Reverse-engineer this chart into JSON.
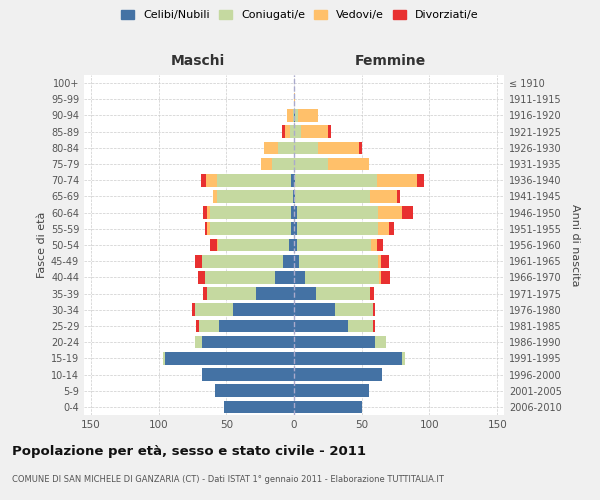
{
  "age_groups": [
    "0-4",
    "5-9",
    "10-14",
    "15-19",
    "20-24",
    "25-29",
    "30-34",
    "35-39",
    "40-44",
    "45-49",
    "50-54",
    "55-59",
    "60-64",
    "65-69",
    "70-74",
    "75-79",
    "80-84",
    "85-89",
    "90-94",
    "95-99",
    "100+"
  ],
  "birth_years": [
    "2006-2010",
    "2001-2005",
    "1996-2000",
    "1991-1995",
    "1986-1990",
    "1981-1985",
    "1976-1980",
    "1971-1975",
    "1966-1970",
    "1961-1965",
    "1956-1960",
    "1951-1955",
    "1946-1950",
    "1941-1945",
    "1936-1940",
    "1931-1935",
    "1926-1930",
    "1921-1925",
    "1916-1920",
    "1911-1915",
    "≤ 1910"
  ],
  "male": {
    "celibi": [
      52,
      58,
      68,
      95,
      68,
      55,
      45,
      28,
      14,
      8,
      4,
      2,
      2,
      1,
      2,
      0,
      0,
      0,
      0,
      0,
      0
    ],
    "coniugati": [
      0,
      0,
      0,
      2,
      5,
      15,
      28,
      36,
      52,
      60,
      52,
      60,
      60,
      56,
      55,
      16,
      12,
      3,
      1,
      0,
      0
    ],
    "vedovi": [
      0,
      0,
      0,
      0,
      0,
      0,
      0,
      0,
      0,
      0,
      1,
      2,
      2,
      3,
      8,
      8,
      10,
      4,
      4,
      0,
      0
    ],
    "divorziati": [
      0,
      0,
      0,
      0,
      0,
      2,
      2,
      3,
      5,
      5,
      5,
      2,
      3,
      0,
      4,
      0,
      0,
      2,
      0,
      0,
      0
    ]
  },
  "female": {
    "nubili": [
      50,
      55,
      65,
      80,
      60,
      40,
      30,
      16,
      8,
      4,
      2,
      2,
      2,
      1,
      1,
      0,
      0,
      0,
      1,
      0,
      0
    ],
    "coniugate": [
      0,
      0,
      0,
      2,
      8,
      18,
      28,
      40,
      55,
      58,
      55,
      60,
      60,
      55,
      60,
      25,
      18,
      5,
      2,
      0,
      0
    ],
    "vedove": [
      0,
      0,
      0,
      0,
      0,
      0,
      0,
      0,
      1,
      2,
      4,
      8,
      18,
      20,
      30,
      30,
      30,
      20,
      15,
      1,
      0
    ],
    "divorziate": [
      0,
      0,
      0,
      0,
      0,
      2,
      2,
      3,
      7,
      6,
      5,
      4,
      8,
      2,
      5,
      0,
      2,
      2,
      0,
      0,
      0
    ]
  },
  "colors": {
    "celibi": "#4472a4",
    "coniugati": "#c5d9a0",
    "vedovi": "#ffc06a",
    "divorziati": "#e83030"
  },
  "title": "Popolazione per età, sesso e stato civile - 2011",
  "subtitle": "COMUNE DI SAN MICHELE DI GANZARIA (CT) - Dati ISTAT 1° gennaio 2011 - Elaborazione TUTTITALIA.IT",
  "xlabel_left": "Maschi",
  "xlabel_right": "Femmine",
  "ylabel_left": "Fasce di età",
  "ylabel_right": "Anni di nascita",
  "xlim": 155,
  "bg_color": "#f0f0f0",
  "plot_bg": "#ffffff",
  "legend_labels": [
    "Celibi/Nubili",
    "Coniugati/e",
    "Vedovi/e",
    "Divorziati/e"
  ]
}
